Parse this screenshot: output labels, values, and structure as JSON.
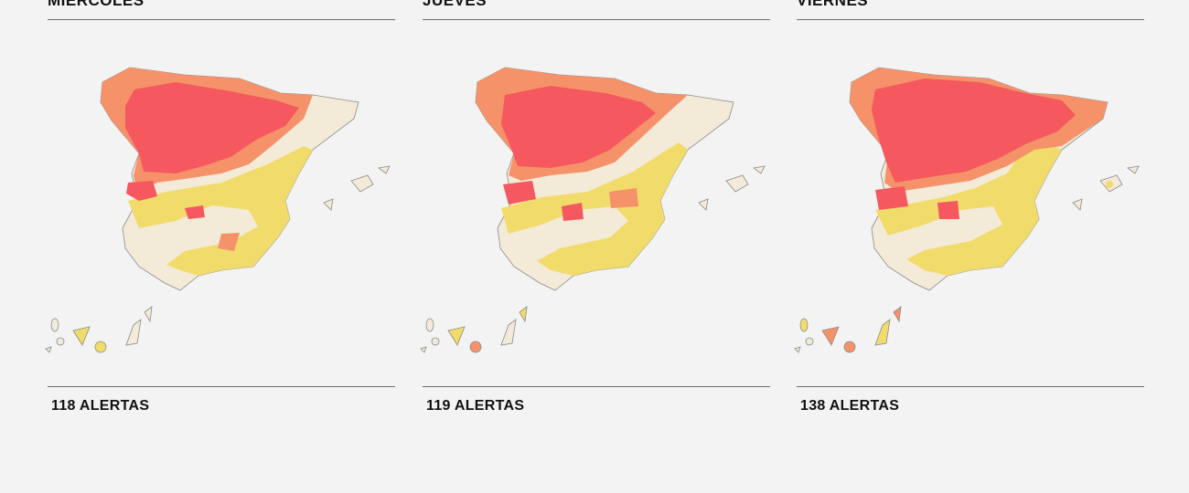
{
  "colors": {
    "level_none": "#f3ead8",
    "level_yellow": "#f1dc6b",
    "level_orange": "#f59269",
    "level_red": "#f5585e",
    "border": "#8a8a8a"
  },
  "panels": [
    {
      "day": "MIÉRCOLES",
      "alerts": "118 ALERTAS",
      "map_icon": "spain-alert-map-icon"
    },
    {
      "day": "JUEVES",
      "alerts": "119 ALERTAS",
      "map_icon": "spain-alert-map-icon"
    },
    {
      "day": "VIERNES",
      "alerts": "138 ALERTAS",
      "map_icon": "spain-alert-map-icon"
    }
  ]
}
